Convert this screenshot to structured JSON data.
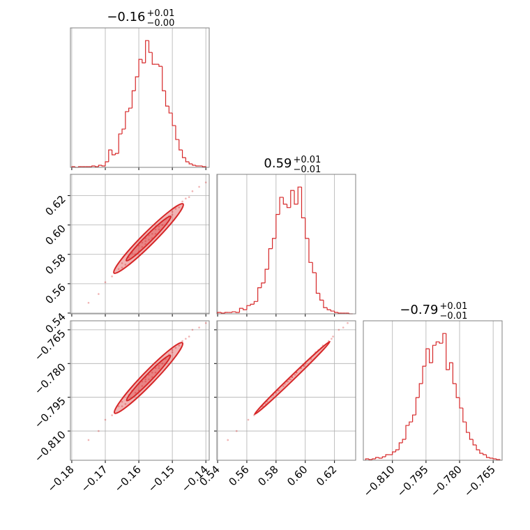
{
  "chart_data": {
    "type": "corner",
    "color": "#d62728",
    "params": [
      {
        "title": "−0.16",
        "title_upper": "+0.01",
        "title_lower": "−0.00",
        "lim": [
          -0.1804,
          -0.139
        ],
        "ticks": [
          {
            "value": -0.18,
            "label": "−0.18"
          },
          {
            "value": -0.17,
            "label": "−0.17"
          },
          {
            "value": -0.16,
            "label": "−0.16"
          },
          {
            "value": -0.15,
            "label": "−0.15"
          },
          {
            "value": -0.14,
            "label": "−0.14"
          }
        ],
        "bins": [
          -0.18,
          -0.179,
          -0.178,
          -0.177,
          -0.176,
          -0.175,
          -0.174,
          -0.173,
          -0.172,
          -0.171,
          -0.17,
          -0.169,
          -0.168,
          -0.167,
          -0.166,
          -0.165,
          -0.164,
          -0.163,
          -0.162,
          -0.161,
          -0.16,
          -0.159,
          -0.158,
          -0.157,
          -0.156,
          -0.155,
          -0.154,
          -0.153,
          -0.152,
          -0.151,
          -0.15,
          -0.149,
          -0.148,
          -0.147,
          -0.146,
          -0.145,
          -0.144,
          -0.143,
          -0.142,
          -0.141,
          -0.14
        ],
        "counts": [
          1,
          0,
          1,
          1,
          1,
          1,
          2,
          1,
          3,
          2,
          8,
          25,
          18,
          20,
          48,
          55,
          80,
          85,
          110,
          130,
          155,
          150,
          182,
          165,
          148,
          148,
          145,
          110,
          88,
          78,
          60,
          40,
          25,
          14,
          8,
          5,
          3,
          2,
          2,
          1
        ]
      },
      {
        "title": "0.59",
        "title_upper": "+0.01",
        "title_lower": "−0.01",
        "lim": [
          0.5395,
          0.6345
        ],
        "ticks": [
          0.54,
          0.56,
          0.58,
          {
            "value": 0.6,
            "label": "0.60"
          },
          0.62
        ],
        "bins": [
          0.54,
          0.5425,
          0.545,
          0.5475,
          0.55,
          0.5525,
          0.555,
          0.5575,
          0.56,
          0.5625,
          0.565,
          0.5675,
          0.57,
          0.5725,
          0.575,
          0.5775,
          0.58,
          0.5825,
          0.585,
          0.5875,
          0.59,
          0.5925,
          0.595,
          0.5975,
          0.6,
          0.6025,
          0.605,
          0.6075,
          0.61,
          0.6125,
          0.615,
          0.6175,
          0.62,
          0.6225,
          0.625,
          0.6275,
          0.63,
          0.6325
        ],
        "counts": [
          2,
          1,
          2,
          2,
          3,
          2,
          8,
          6,
          12,
          14,
          18,
          38,
          45,
          65,
          95,
          110,
          145,
          170,
          160,
          155,
          180,
          160,
          185,
          140,
          110,
          75,
          60,
          30,
          20,
          9,
          6,
          4,
          2,
          1,
          1,
          1,
          0
        ]
      },
      {
        "title": "−0.79",
        "title_upper": "+0.01",
        "title_lower": "−0.01",
        "lim": [
          -0.823,
          -0.761
        ],
        "ticks": [
          {
            "value": -0.81,
            "label": "−0.810"
          },
          {
            "value": -0.795,
            "label": "−0.795"
          },
          {
            "value": -0.78,
            "label": "−0.780"
          },
          {
            "value": -0.765,
            "label": "−0.765"
          }
        ],
        "bins": [
          -0.822,
          -0.8205,
          -0.819,
          -0.8175,
          -0.816,
          -0.8145,
          -0.813,
          -0.8115,
          -0.81,
          -0.8085,
          -0.807,
          -0.8055,
          -0.804,
          -0.8025,
          -0.801,
          -0.7995,
          -0.798,
          -0.7965,
          -0.795,
          -0.7935,
          -0.792,
          -0.7905,
          -0.789,
          -0.7875,
          -0.786,
          -0.7845,
          -0.783,
          -0.7815,
          -0.78,
          -0.7785,
          -0.777,
          -0.7755,
          -0.774,
          -0.7725,
          -0.771,
          -0.7695,
          -0.768,
          -0.7665,
          -0.765,
          -0.7635,
          -0.762
        ],
        "counts": [
          2,
          1,
          2,
          4,
          3,
          5,
          8,
          8,
          12,
          15,
          25,
          30,
          50,
          55,
          65,
          90,
          110,
          135,
          160,
          140,
          165,
          170,
          168,
          182,
          130,
          140,
          110,
          90,
          75,
          55,
          40,
          30,
          22,
          15,
          10,
          8,
          4,
          3,
          2,
          1
        ]
      }
    ],
    "samples": [
      [
        -0.175,
        -0.172,
        -0.17,
        -0.168,
        -0.166,
        -0.165,
        -0.164,
        -0.163,
        -0.162,
        -0.161,
        -0.16,
        -0.159,
        -0.159,
        -0.158,
        -0.158,
        -0.157,
        -0.157,
        -0.156,
        -0.156,
        -0.155,
        -0.155,
        -0.154,
        -0.154,
        -0.153,
        -0.152,
        -0.151,
        -0.15,
        -0.149,
        -0.148,
        -0.147,
        -0.146,
        -0.145,
        -0.144,
        -0.142,
        -0.14,
        -0.16,
        -0.155,
        -0.15,
        -0.165,
        -0.158
      ],
      [
        0.547,
        0.553,
        0.561,
        0.565,
        0.57,
        0.574,
        0.573,
        0.578,
        0.581,
        0.58,
        0.586,
        0.585,
        0.588,
        0.587,
        0.591,
        0.59,
        0.593,
        0.594,
        0.591,
        0.597,
        0.594,
        0.599,
        0.597,
        0.6,
        0.604,
        0.606,
        0.607,
        0.611,
        0.612,
        0.616,
        0.618,
        0.619,
        0.623,
        0.626,
        0.629,
        0.582,
        0.599,
        0.609,
        0.571,
        0.589
      ],
      [
        -0.814,
        -0.81,
        -0.805,
        -0.803,
        -0.799,
        -0.797,
        -0.798,
        -0.794,
        -0.792,
        -0.793,
        -0.789,
        -0.79,
        -0.788,
        -0.788,
        -0.786,
        -0.787,
        -0.785,
        -0.784,
        -0.786,
        -0.782,
        -0.784,
        -0.781,
        -0.782,
        -0.78,
        -0.778,
        -0.776,
        -0.775,
        -0.773,
        -0.772,
        -0.77,
        -0.769,
        -0.768,
        -0.765,
        -0.764,
        -0.762,
        -0.792,
        -0.781,
        -0.774,
        -0.799,
        -0.787
      ]
    ]
  }
}
